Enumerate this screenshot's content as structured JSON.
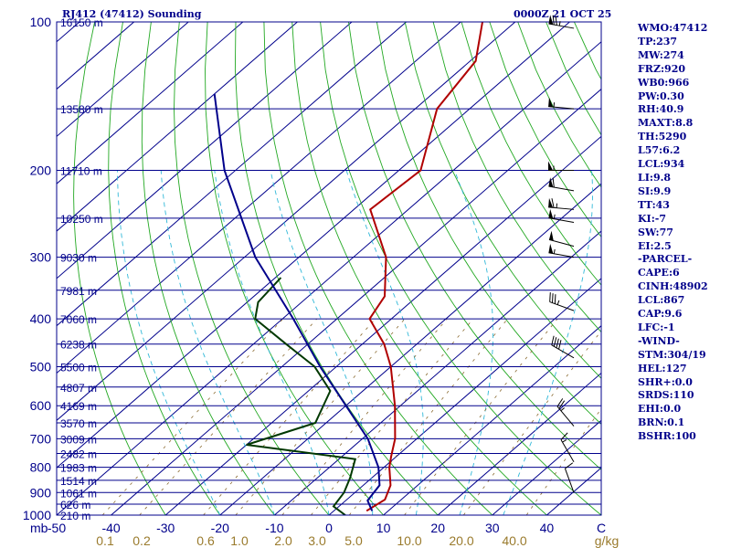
{
  "header": {
    "station": "RJ412 (47412) Sounding",
    "time": "0000Z 21 OCT 25"
  },
  "stats": [
    "WMO:47412",
    "TP:237",
    "MW:274",
    "FRZ:920",
    "WB0:966",
    "PW:0.30",
    "RH:40.9",
    "MAXT:8.8",
    "TH:5290",
    "L57:6.2",
    "LCL:934",
    "LI:9.8",
    "SI:9.9",
    "TT:43",
    "KI:-7",
    "SW:77",
    "EI:2.5",
    "-PARCEL-",
    "CAPE:6",
    "CINH:48902",
    "LCL:867",
    "CAP:9.6",
    "LFC:-1",
    "-WIND-",
    "STM:304/19",
    "HEL:127",
    "SHR+:0.0",
    "SRDS:110",
    "EHI:0.0",
    "BRN:0.1",
    "BSHR:100"
  ],
  "chart_data": {
    "type": "line",
    "title": "RJ412 (47412) Sounding",
    "pressure_levels": [
      100,
      200,
      300,
      400,
      500,
      600,
      700,
      800,
      900,
      1000
    ],
    "pressure_tick_labels": [
      "100",
      "200",
      "300",
      "400",
      "500",
      "600",
      "700",
      "800",
      "900",
      "1000"
    ],
    "pressure_unit_label": "mb",
    "temperature_ticks": [
      -50,
      -40,
      -30,
      -20,
      -10,
      0,
      10,
      20,
      30,
      40,
      50
    ],
    "temperature_tick_labels": [
      "-50",
      "-40",
      "-30",
      "-20",
      "-10",
      "0",
      "10",
      "20",
      "30",
      "40",
      "C"
    ],
    "mixing_ratio_labels": [
      "0.1",
      "0.2",
      "0.6",
      "1.0",
      "2.0",
      "3.0",
      "5.0",
      "10.0",
      "20.0",
      "40.0"
    ],
    "mixing_ratio_unit": "g/kg",
    "height_labels": [
      {
        "p": 100,
        "label": "16150 m"
      },
      {
        "p": 150,
        "label": "13580 m"
      },
      {
        "p": 200,
        "label": "11710 m"
      },
      {
        "p": 250,
        "label": "10250 m"
      },
      {
        "p": 300,
        "label": "9030 m"
      },
      {
        "p": 350,
        "label": "7981 m"
      },
      {
        "p": 400,
        "label": "7060 m"
      },
      {
        "p": 450,
        "label": "6238 m"
      },
      {
        "p": 500,
        "label": "5500 m"
      },
      {
        "p": 550,
        "label": "4807 m"
      },
      {
        "p": 600,
        "label": "4169 m"
      },
      {
        "p": 650,
        "label": "3570 m"
      },
      {
        "p": 700,
        "label": "3009 m"
      },
      {
        "p": 750,
        "label": "2482 m"
      },
      {
        "p": 800,
        "label": "1983 m"
      },
      {
        "p": 850,
        "label": "1514 m"
      },
      {
        "p": 900,
        "label": "1061 m"
      },
      {
        "p": 950,
        "label": "626 m"
      },
      {
        "p": 1000,
        "label": "210 m"
      }
    ],
    "series": [
      {
        "color": "#b00000",
        "points": [
          {
            "p": 100,
            "t": -76
          },
          {
            "p": 120,
            "t": -69
          },
          {
            "p": 150,
            "t": -66
          },
          {
            "p": 200,
            "t": -56
          },
          {
            "p": 240,
            "t": -57
          },
          {
            "p": 300,
            "t": -44
          },
          {
            "p": 360,
            "t": -36
          },
          {
            "p": 400,
            "t": -34
          },
          {
            "p": 450,
            "t": -26
          },
          {
            "p": 500,
            "t": -20
          },
          {
            "p": 600,
            "t": -11
          },
          {
            "p": 700,
            "t": -4
          },
          {
            "p": 760,
            "t": -1
          },
          {
            "p": 800,
            "t": 1
          },
          {
            "p": 870,
            "t": 5
          },
          {
            "p": 930,
            "t": 7
          },
          {
            "p": 980,
            "t": 6
          }
        ]
      },
      {
        "color": "#003800",
        "points": [
          {
            "p": 330,
            "t": -59
          },
          {
            "p": 370,
            "t": -58
          },
          {
            "p": 400,
            "t": -55
          },
          {
            "p": 450,
            "t": -44
          },
          {
            "p": 500,
            "t": -34
          },
          {
            "p": 560,
            "t": -26
          },
          {
            "p": 650,
            "t": -22
          },
          {
            "p": 720,
            "t": -30
          },
          {
            "p": 770,
            "t": -7
          },
          {
            "p": 840,
            "t": -4
          },
          {
            "p": 900,
            "t": -2
          },
          {
            "p": 960,
            "t": -1
          },
          {
            "p": 1000,
            "t": 3
          }
        ]
      },
      {
        "color": "#00008b",
        "points": [
          {
            "p": 140,
            "t": -110
          },
          {
            "p": 200,
            "t": -92
          },
          {
            "p": 300,
            "t": -68
          },
          {
            "p": 400,
            "t": -48
          },
          {
            "p": 500,
            "t": -33
          },
          {
            "p": 600,
            "t": -20
          },
          {
            "p": 700,
            "t": -9
          },
          {
            "p": 800,
            "t": -1
          },
          {
            "p": 870,
            "t": 3
          },
          {
            "p": 934,
            "t": 4
          },
          {
            "p": 980,
            "t": 7
          }
        ]
      }
    ],
    "wind_barbs": [
      {
        "p": 103,
        "dir": 280,
        "speed": 75
      },
      {
        "p": 150,
        "dir": 275,
        "speed": 55
      },
      {
        "p": 200,
        "dir": 270,
        "speed": 55
      },
      {
        "p": 220,
        "dir": 280,
        "speed": 60
      },
      {
        "p": 240,
        "dir": 275,
        "speed": 65
      },
      {
        "p": 255,
        "dir": 280,
        "speed": 55
      },
      {
        "p": 285,
        "dir": 285,
        "speed": 50
      },
      {
        "p": 300,
        "dir": 280,
        "speed": 55
      },
      {
        "p": 385,
        "dir": 290,
        "speed": 35
      },
      {
        "p": 480,
        "dir": 300,
        "speed": 40
      },
      {
        "p": 660,
        "dir": 320,
        "speed": 25
      },
      {
        "p": 780,
        "dir": 330,
        "speed": 15
      },
      {
        "p": 900,
        "dir": 340,
        "speed": 10
      }
    ]
  }
}
